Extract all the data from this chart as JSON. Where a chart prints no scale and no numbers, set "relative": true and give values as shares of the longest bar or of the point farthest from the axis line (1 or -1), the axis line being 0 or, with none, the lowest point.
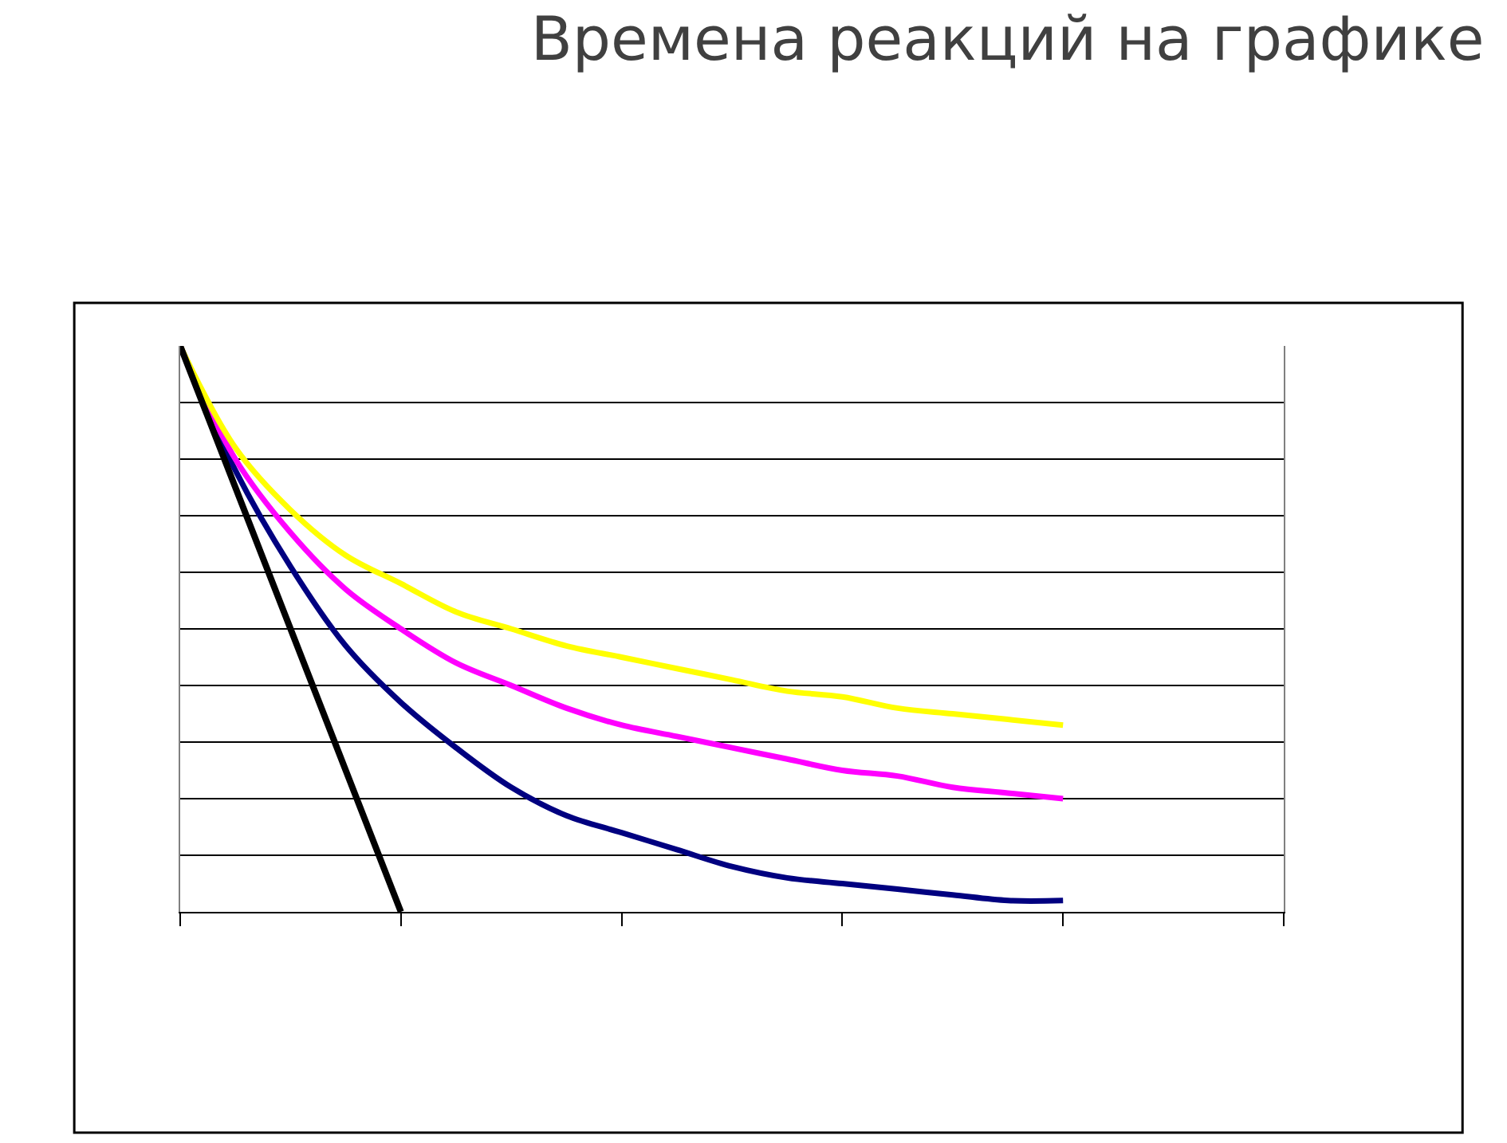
{
  "chart_data": {
    "type": "line",
    "title": "Времена реакций на графике",
    "relative": true,
    "grid": "y",
    "marker": "none",
    "categories": [
      null,
      null,
      null,
      null,
      null,
      null,
      null,
      null,
      null,
      null,
      null,
      null,
      null,
      null,
      null,
      null,
      null,
      null,
      null,
      null,
      null
    ],
    "series": [
      {
        "color": "#000080",
        "values": [
          1,
          0.78,
          0.61,
          0.47,
          0.37,
          0.29,
          0.22,
          0.17,
          0.14,
          0.11,
          0.08,
          0.06,
          0.05,
          0.04,
          0.03,
          0.02,
          0.02,
          null,
          null,
          null,
          null
        ]
      },
      {
        "color": "#ff00ff",
        "values": [
          1,
          0.8,
          0.67,
          0.57,
          0.5,
          0.44,
          0.4,
          0.36,
          0.33,
          0.31,
          0.29,
          0.27,
          0.25,
          0.24,
          0.22,
          0.21,
          0.2,
          null,
          null,
          null,
          null
        ]
      },
      {
        "color": "#ffff00",
        "values": [
          1,
          0.82,
          0.71,
          0.63,
          0.58,
          0.53,
          0.5,
          0.47,
          0.45,
          0.43,
          0.41,
          0.39,
          0.38,
          0.36,
          0.35,
          0.34,
          0.33,
          null,
          null,
          null,
          null
        ]
      },
      {
        "type": "line",
        "color": "#000000",
        "values": [
          1,
          0.75,
          0.5,
          0.25,
          0,
          null,
          null,
          null,
          null,
          null,
          null,
          null,
          null,
          null,
          null,
          null,
          null,
          null,
          null,
          null,
          null
        ]
      }
    ]
  }
}
